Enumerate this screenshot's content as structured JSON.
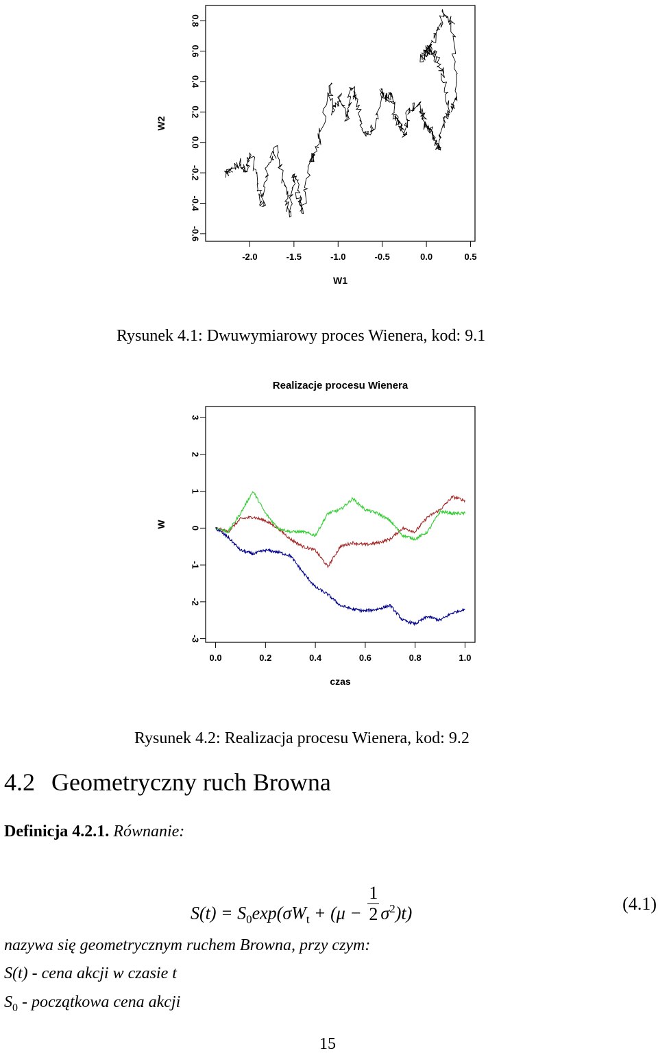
{
  "figure1": {
    "caption": "Rysunek 4.1: Dwuwymiarowy proces Wienera, kod: 9.1",
    "chart_data": {
      "type": "line",
      "title": "",
      "xlabel": "W1",
      "ylabel": "W2",
      "xlim": [
        -2.5,
        0.55
      ],
      "ylim": [
        -0.65,
        0.9
      ],
      "x_ticks": [
        "-2.0",
        "-1.5",
        "-1.0",
        "-0.5",
        "0.0",
        "0.5"
      ],
      "y_ticks": [
        "-0.6",
        "-0.4",
        "-0.2",
        "0.0",
        "0.2",
        "0.4",
        "0.6",
        "0.8"
      ],
      "series": [
        {
          "color": "#000000",
          "x": [
            -2.28,
            -2.22,
            -2.1,
            -2.05,
            -1.98,
            -1.9,
            -1.85,
            -1.8,
            -1.7,
            -1.6,
            -1.55,
            -1.5,
            -1.45,
            -1.4,
            -1.3,
            -1.28,
            -1.2,
            -1.1,
            -1.05,
            -0.98,
            -0.9,
            -0.85,
            -0.8,
            -0.7,
            -0.6,
            -0.5,
            -0.45,
            -0.4,
            -0.35,
            -0.3,
            -0.25,
            -0.2,
            -0.1,
            -0.05,
            0.0,
            0.05,
            0.1,
            0.15,
            0.2,
            0.25,
            0.18,
            0.12,
            0.05,
            0.0,
            -0.05,
            0.03,
            0.1,
            0.2,
            0.3,
            0.33,
            0.28
          ],
          "y": [
            -0.22,
            -0.18,
            -0.13,
            -0.2,
            -0.08,
            -0.3,
            -0.42,
            -0.15,
            -0.05,
            -0.3,
            -0.48,
            -0.2,
            -0.35,
            -0.45,
            -0.1,
            -0.1,
            0.05,
            0.4,
            0.2,
            0.3,
            0.15,
            0.35,
            0.27,
            0.05,
            0.1,
            0.35,
            0.28,
            0.32,
            0.18,
            0.12,
            0.05,
            0.2,
            0.25,
            0.18,
            0.1,
            0.08,
            0.0,
            -0.05,
            0.15,
            0.2,
            0.45,
            0.55,
            0.62,
            0.6,
            0.55,
            0.62,
            0.7,
            0.86,
            0.78,
            0.3,
            0.2
          ]
        }
      ],
      "grid": false,
      "legend": "none"
    }
  },
  "figure2": {
    "caption": "Rysunek 4.2: Realizacja procesu Wienera, kod: 9.2",
    "chart_data": {
      "type": "line",
      "title": "Realizacje procesu Wienera",
      "xlabel": "czas",
      "ylabel": "W",
      "xlim": [
        -0.04,
        1.04
      ],
      "ylim": [
        -3.1,
        3.3
      ],
      "x_ticks": [
        "0.0",
        "0.2",
        "0.4",
        "0.6",
        "0.8",
        "1.0"
      ],
      "y_ticks": [
        "-3",
        "-2",
        "-1",
        "0",
        "1",
        "2",
        "3"
      ],
      "x": [
        0.0,
        0.05,
        0.1,
        0.15,
        0.2,
        0.25,
        0.3,
        0.35,
        0.4,
        0.45,
        0.5,
        0.55,
        0.6,
        0.65,
        0.7,
        0.75,
        0.8,
        0.85,
        0.9,
        0.95,
        1.0
      ],
      "series": [
        {
          "color": "#a52a2a",
          "values": [
            0.0,
            -0.1,
            0.25,
            0.3,
            0.2,
            0.0,
            -0.3,
            -0.5,
            -0.6,
            -1.05,
            -0.5,
            -0.4,
            -0.45,
            -0.4,
            -0.3,
            0.0,
            -0.1,
            0.3,
            0.5,
            0.85,
            0.75
          ]
        },
        {
          "color": "#32cd32",
          "values": [
            0.0,
            -0.1,
            0.4,
            1.0,
            0.4,
            0.0,
            -0.1,
            -0.1,
            -0.2,
            0.4,
            0.5,
            0.8,
            0.5,
            0.4,
            0.2,
            -0.2,
            -0.3,
            -0.1,
            0.45,
            0.4,
            0.4
          ]
        },
        {
          "color": "#00008b",
          "values": [
            0.0,
            -0.25,
            -0.6,
            -0.7,
            -0.6,
            -0.65,
            -0.75,
            -1.2,
            -1.6,
            -1.8,
            -2.1,
            -2.2,
            -2.25,
            -2.2,
            -2.1,
            -2.5,
            -2.6,
            -2.4,
            -2.5,
            -2.3,
            -2.2
          ]
        }
      ],
      "grid": false,
      "legend": "none"
    }
  },
  "section": {
    "number": "4.2",
    "title": "Geometryczny ruch Browna"
  },
  "definition": {
    "label": "Definicja 4.2.1.",
    "text": "Równanie:"
  },
  "equation": {
    "lhs": "S(t) = S",
    "s_sub": "0",
    "exp_part": "exp(σW",
    "w_sub": "t",
    "plus_part": " + (μ −",
    "frac_num": "1",
    "frac_den": "2",
    "sigma": "σ",
    "sigma_sup": "2",
    "tail": ")t)",
    "number": "(4.1)"
  },
  "body": {
    "line1": "nazywa się geometrycznym ruchem Browna, przy czym:",
    "line2": "S(t) - cena akcji w czasie t",
    "line3_s": "S",
    "line3_sub": "0",
    "line3_rest": " - początkowa cena akcji"
  },
  "page_number": "15"
}
